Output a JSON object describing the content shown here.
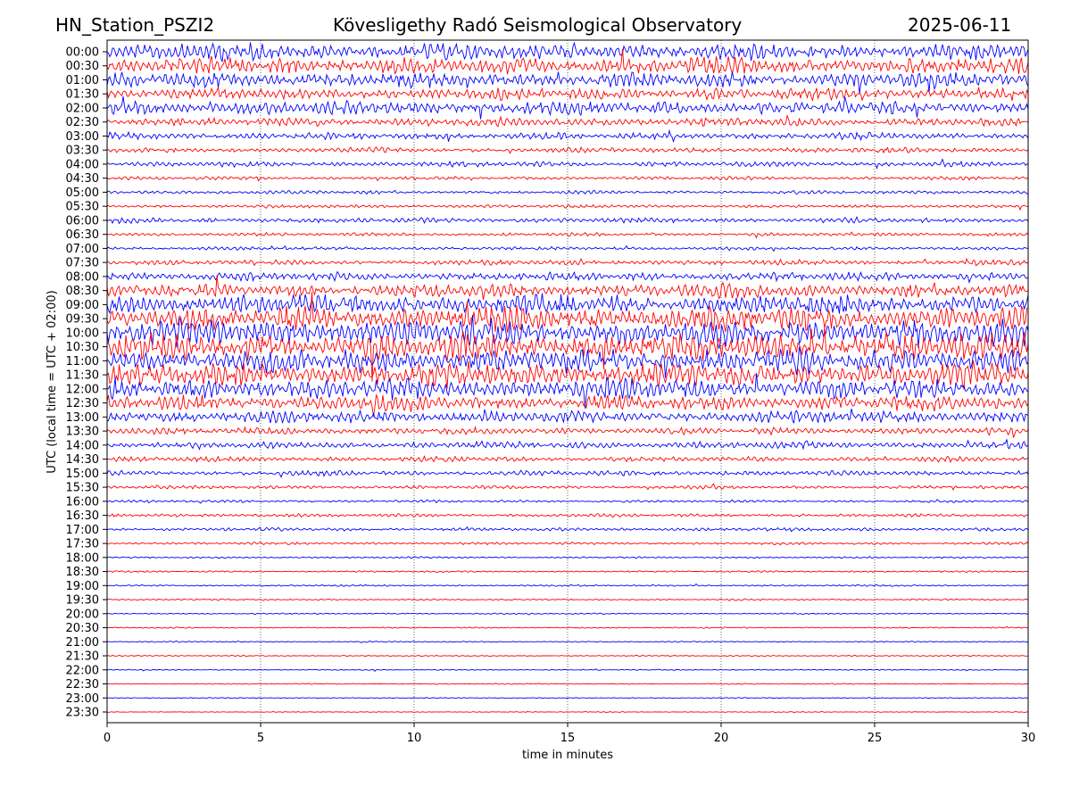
{
  "header": {
    "station": "HN_Station_PSZI2",
    "observatory": "Kövesligethy Radó Seismological Observatory",
    "date": "2025-06-11"
  },
  "chart_data": {
    "type": "line",
    "title": "Kövesligethy Radó Seismological Observatory",
    "xlabel": "time in minutes",
    "ylabel": "UTC (local time = UTC + 02:00)",
    "xlim": [
      0,
      30
    ],
    "x_ticks": [
      "0",
      "5",
      "10",
      "15",
      "20",
      "25",
      "30"
    ],
    "x_tick_values": [
      0,
      5,
      10,
      15,
      20,
      25,
      30
    ],
    "grid": "vertical dotted",
    "series_colors": [
      "#0000ff",
      "#ff0000"
    ],
    "rows": [
      "00:00",
      "00:30",
      "01:00",
      "01:30",
      "02:00",
      "02:30",
      "03:00",
      "03:30",
      "04:00",
      "04:30",
      "05:00",
      "05:30",
      "06:00",
      "06:30",
      "07:00",
      "07:30",
      "08:00",
      "08:30",
      "09:00",
      "09:30",
      "10:00",
      "10:30",
      "11:00",
      "11:30",
      "12:00",
      "12:30",
      "13:00",
      "13:30",
      "14:00",
      "14:30",
      "15:00",
      "15:30",
      "16:00",
      "16:30",
      "17:00",
      "17:30",
      "18:00",
      "18:30",
      "19:00",
      "19:30",
      "20:00",
      "20:30",
      "21:00",
      "21:30",
      "22:00",
      "22:30",
      "23:00",
      "23:30"
    ],
    "relative_amplitude": [
      10,
      10,
      9,
      7,
      8,
      5,
      4,
      3,
      3,
      2,
      2,
      2,
      3,
      2,
      2,
      3,
      5,
      8,
      12,
      14,
      16,
      16,
      14,
      14,
      12,
      9,
      7,
      4,
      4,
      3,
      3,
      2,
      1.5,
      2,
      2,
      1.5,
      1,
      1,
      1,
      1,
      0.8,
      0.8,
      0.7,
      0.7,
      0.6,
      0.6,
      0.5,
      0.5
    ]
  }
}
